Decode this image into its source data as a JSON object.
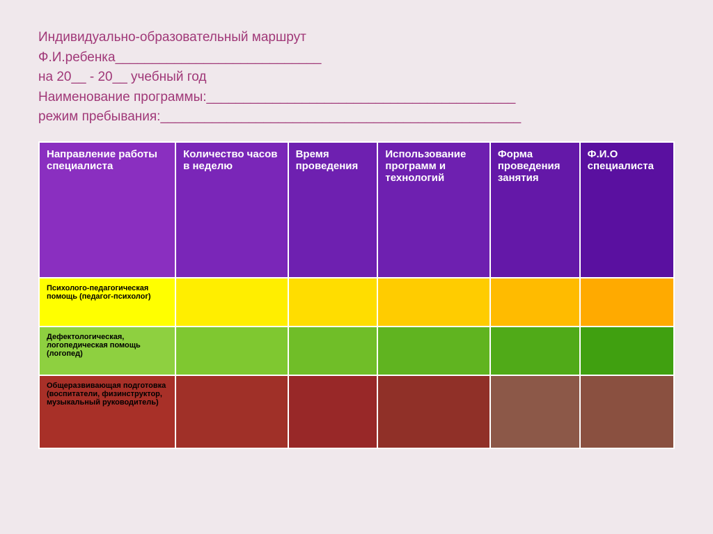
{
  "title": {
    "line1": "Индивидуально-образовательный маршрут",
    "line2": "Ф.И.ребенка____________________________",
    "line3": "на 20__ - 20__ учебный год",
    "line4": "Наименование программы:__________________________________________",
    "line5": "режим пребывания:_________________________________________________"
  },
  "table": {
    "columns": [
      {
        "label": "Направление работы специалиста",
        "bg": "#8a2fc0",
        "width": "170"
      },
      {
        "label": "Количество часов в неделю",
        "bg": "#7a26b8",
        "width": "140"
      },
      {
        "label": "Время проведения",
        "bg": "#6e20b0",
        "width": "110"
      },
      {
        "label": "Использование программ и технологий",
        "bg": "#6e20b0",
        "width": "140"
      },
      {
        "label": "Форма проведения занятия",
        "bg": "#6418a8",
        "width": "110"
      },
      {
        "label": "Ф.И.О специалиста",
        "bg": "#5a10a0",
        "width": "110"
      }
    ],
    "rows": [
      {
        "label": "Психолого-педагогическая помощь (педагог-психолог)",
        "colors": [
          "#ffff00",
          "#ffee00",
          "#ffdd00",
          "#ffcc00",
          "#ffbb00",
          "#ffaa00"
        ]
      },
      {
        "label": "Дефектологическая, логопедическая помощь (логопед)",
        "colors": [
          "#8ed040",
          "#7fc830",
          "#70be28",
          "#60b420",
          "#50aa18",
          "#40a010"
        ]
      },
      {
        "label": "Общеразвивающая подготовка (воспитатели, физинструктор, музыкальный руководитель)",
        "colors": [
          "#a83028",
          "#a03028",
          "#982828",
          "#903028",
          "#8c5848",
          "#8a5040"
        ]
      }
    ]
  },
  "colors": {
    "title_color": "#a03878",
    "background": "#f0e8ec",
    "border": "#ffffff"
  }
}
